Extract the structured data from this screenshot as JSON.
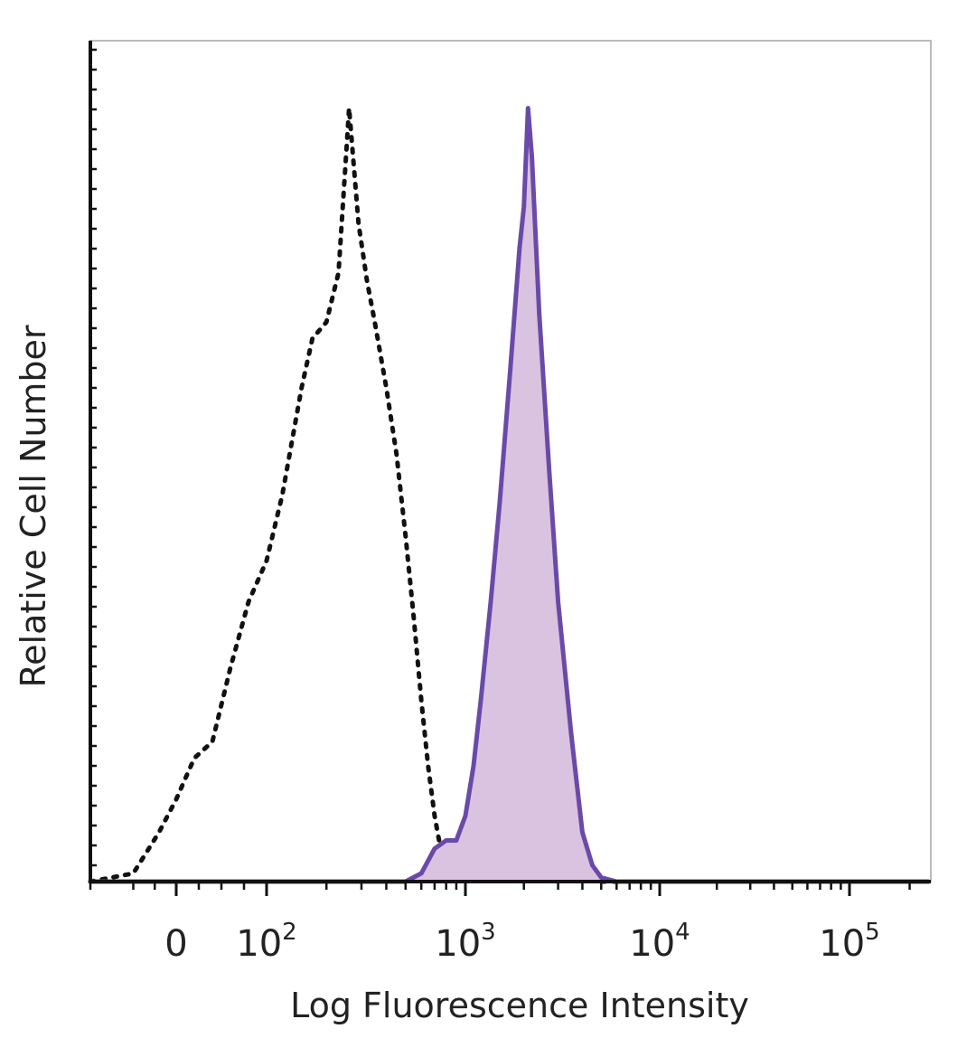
{
  "chart_data": {
    "type": "area",
    "title": "",
    "xlabel": "Log Fluorescence Intensity",
    "ylabel": "Relative Cell Number",
    "x_scale": "biexponential",
    "xlim": [
      -100,
      250000
    ],
    "ylim": [
      0,
      1.0
    ],
    "x_ticks": [
      {
        "value": 0,
        "base": "0",
        "exp": ""
      },
      {
        "value": 100,
        "base": "10",
        "exp": "2"
      },
      {
        "value": 1000,
        "base": "10",
        "exp": "3"
      },
      {
        "value": 10000,
        "base": "10",
        "exp": "4"
      },
      {
        "value": 100000,
        "base": "10",
        "exp": "5"
      }
    ],
    "grid": false,
    "legend": "none",
    "colors": {
      "stained_line": "#6a4aa8",
      "stained_fill": "#d9c3e0",
      "control_line": "#111111",
      "axis": "#111111",
      "frame": "#bbbbbb"
    },
    "series": [
      {
        "style": "dotted-line",
        "x": [
          -100,
          -50,
          -20,
          0,
          20,
          40,
          60,
          80,
          100,
          120,
          150,
          170,
          200,
          230,
          260,
          290,
          320,
          350,
          400,
          450,
          500,
          550,
          600,
          650,
          700,
          750,
          800,
          900,
          1000,
          1200,
          1500,
          2000,
          3000,
          5000,
          10000,
          50000,
          250000
        ],
        "y": [
          0.0,
          0.01,
          0.06,
          0.1,
          0.15,
          0.17,
          0.26,
          0.34,
          0.39,
          0.47,
          0.6,
          0.66,
          0.68,
          0.74,
          0.94,
          0.8,
          0.73,
          0.68,
          0.6,
          0.52,
          0.42,
          0.32,
          0.22,
          0.14,
          0.08,
          0.04,
          0.03,
          0.02,
          0.03,
          0.02,
          0.01,
          0.01,
          0.005,
          0.0,
          0.0,
          0.0,
          0.0
        ]
      },
      {
        "style": "filled-line",
        "x": [
          -100,
          0,
          100,
          300,
          500,
          600,
          700,
          800,
          900,
          1000,
          1100,
          1200,
          1350,
          1500,
          1700,
          1900,
          2000,
          2100,
          2200,
          2400,
          2700,
          3000,
          3500,
          4000,
          4500,
          5000,
          6000,
          10000,
          250000
        ],
        "y": [
          0.0,
          0.0,
          0.0,
          0.0,
          0.0,
          0.01,
          0.04,
          0.05,
          0.05,
          0.08,
          0.14,
          0.22,
          0.34,
          0.46,
          0.62,
          0.77,
          0.82,
          0.94,
          0.88,
          0.69,
          0.5,
          0.34,
          0.18,
          0.06,
          0.02,
          0.005,
          0.0,
          0.0,
          0.0
        ]
      }
    ]
  }
}
